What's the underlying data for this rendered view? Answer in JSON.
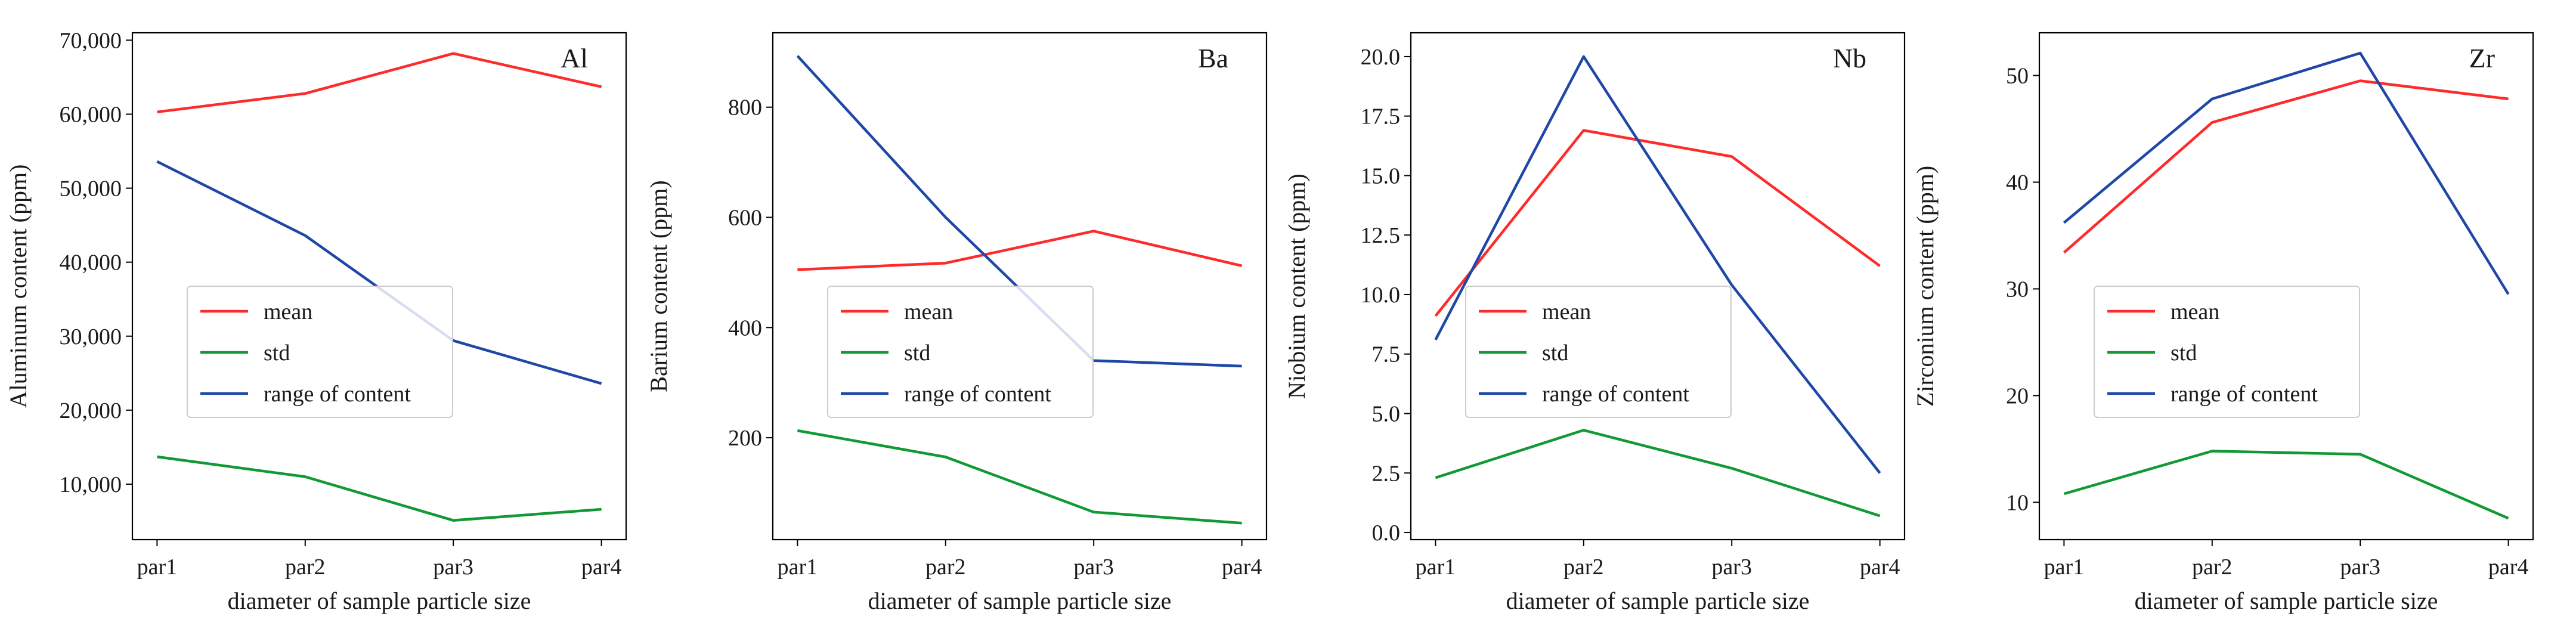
{
  "chart_data": [
    {
      "type": "line",
      "title": "Al",
      "xlabel": "diameter of sample particle size",
      "ylabel": "Aluminum content (ppm)",
      "categories": [
        "par1",
        "par2",
        "par3",
        "par4"
      ],
      "ylim": [
        2500,
        71000
      ],
      "yticks": [
        10000,
        20000,
        30000,
        40000,
        50000,
        60000,
        70000
      ],
      "ytick_labels": [
        "10,000",
        "20,000",
        "30,000",
        "40,000",
        "50,000",
        "60,000",
        "70,000"
      ],
      "legend_position": "center-left",
      "series": [
        {
          "name": "mean",
          "color": "#ff2a2a",
          "values": [
            60300,
            62800,
            68200,
            63700
          ]
        },
        {
          "name": "std",
          "color": "#119933",
          "values": [
            13700,
            11000,
            5100,
            6600
          ]
        },
        {
          "name": "range of content",
          "color": "#1f47a8",
          "values": [
            53600,
            43600,
            29400,
            23600
          ]
        }
      ]
    },
    {
      "type": "line",
      "title": "Ba",
      "xlabel": "diameter of sample particle size",
      "ylabel": "Barium content (ppm)",
      "categories": [
        "par1",
        "par2",
        "par3",
        "par4"
      ],
      "ylim": [
        15,
        935
      ],
      "yticks": [
        200,
        400,
        600,
        800
      ],
      "ytick_labels": [
        "200",
        "400",
        "600",
        "800"
      ],
      "legend_position": "center-left",
      "series": [
        {
          "name": "mean",
          "color": "#ff2a2a",
          "values": [
            505,
            517,
            575,
            512
          ]
        },
        {
          "name": "std",
          "color": "#119933",
          "values": [
            213,
            165,
            65,
            45
          ]
        },
        {
          "name": "range of content",
          "color": "#1f47a8",
          "values": [
            893,
            600,
            340,
            330
          ]
        }
      ]
    },
    {
      "type": "line",
      "title": "Nb",
      "xlabel": "diameter of sample particle size",
      "ylabel": "Niobium content (ppm)",
      "categories": [
        "par1",
        "par2",
        "par3",
        "par4"
      ],
      "ylim": [
        -0.3,
        21
      ],
      "yticks": [
        0.0,
        2.5,
        5.0,
        7.5,
        10.0,
        12.5,
        15.0,
        17.5,
        20.0
      ],
      "ytick_labels": [
        "0.0",
        "2.5",
        "5.0",
        "7.5",
        "10.0",
        "12.5",
        "15.0",
        "17.5",
        "20.0"
      ],
      "legend_position": "center-left",
      "series": [
        {
          "name": "mean",
          "color": "#ff2a2a",
          "values": [
            9.1,
            16.9,
            15.8,
            11.2
          ]
        },
        {
          "name": "std",
          "color": "#119933",
          "values": [
            2.3,
            4.3,
            2.7,
            0.7
          ]
        },
        {
          "name": "range of content",
          "color": "#1f47a8",
          "values": [
            8.1,
            20.0,
            10.4,
            2.5
          ]
        }
      ]
    },
    {
      "type": "line",
      "title": "Zr",
      "xlabel": "diameter of sample particle size",
      "ylabel": "Zirconium content (ppm)",
      "categories": [
        "par1",
        "par2",
        "par3",
        "par4"
      ],
      "ylim": [
        6.5,
        54
      ],
      "yticks": [
        10,
        20,
        30,
        40,
        50
      ],
      "ytick_labels": [
        "10",
        "20",
        "30",
        "40",
        "50"
      ],
      "legend_position": "center-left",
      "series": [
        {
          "name": "mean",
          "color": "#ff2a2a",
          "values": [
            33.4,
            45.6,
            49.5,
            47.8
          ]
        },
        {
          "name": "std",
          "color": "#119933",
          "values": [
            10.8,
            14.8,
            14.5,
            8.5
          ]
        },
        {
          "name": "range of content",
          "color": "#1f47a8",
          "values": [
            36.2,
            47.8,
            52.1,
            29.5
          ]
        }
      ]
    }
  ]
}
